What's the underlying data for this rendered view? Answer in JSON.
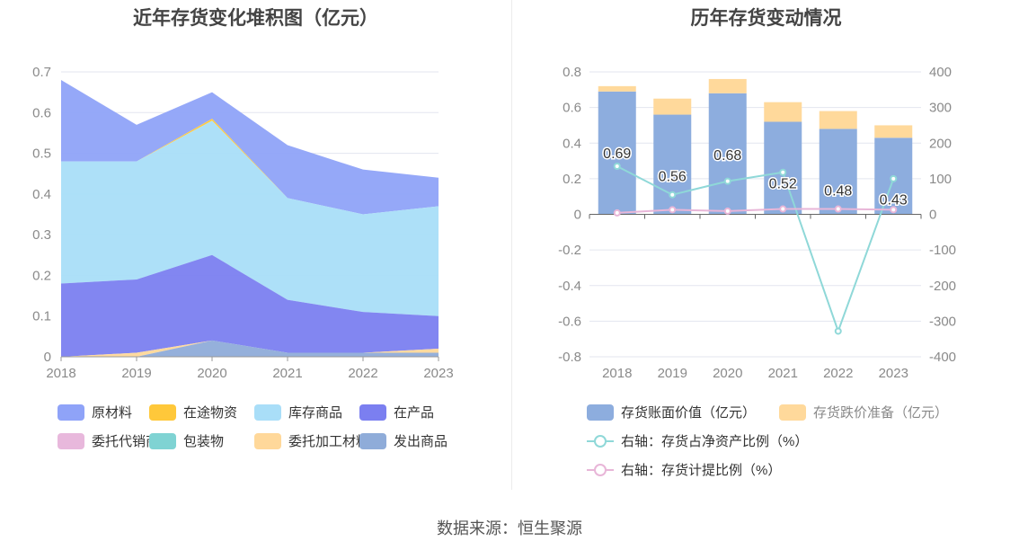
{
  "chart_data": [
    {
      "type": "area",
      "stacked": true,
      "title": "近年存货变化堆积图（亿元）",
      "categories": [
        "2018",
        "2019",
        "2020",
        "2021",
        "2022",
        "2023"
      ],
      "ylim": [
        0,
        0.7
      ],
      "yticks": [
        "0",
        "0.1",
        "0.2",
        "0.3",
        "0.4",
        "0.5",
        "0.6",
        "0.7"
      ],
      "series": [
        {
          "name": "发出商品",
          "color": "#8facd9",
          "values": [
            0,
            0,
            0.04,
            0.01,
            0.01,
            0.01
          ]
        },
        {
          "name": "委托加工材料",
          "color": "#ffd89a",
          "values": [
            0,
            0.01,
            0,
            0,
            0,
            0.01
          ]
        },
        {
          "name": "包装物",
          "color": "#7fd3d3",
          "values": [
            0,
            0,
            0,
            0,
            0,
            0
          ]
        },
        {
          "name": "委托代销商品",
          "color": "#e8b8dc",
          "values": [
            0,
            0,
            0,
            0,
            0,
            0
          ]
        },
        {
          "name": "在产品",
          "color": "#7b7ff0",
          "values": [
            0.18,
            0.18,
            0.21,
            0.13,
            0.1,
            0.08
          ]
        },
        {
          "name": "库存商品",
          "color": "#a9def8",
          "values": [
            0.3,
            0.29,
            0.33,
            0.25,
            0.24,
            0.27
          ]
        },
        {
          "name": "在途物资",
          "color": "#ffc83a",
          "values": [
            0,
            0,
            0.005,
            0,
            0,
            0
          ]
        },
        {
          "name": "原材料",
          "color": "#8fa3f8",
          "values": [
            0.2,
            0.09,
            0.065,
            0.13,
            0.11,
            0.07
          ]
        }
      ],
      "legend_order": [
        "原材料",
        "在途物资",
        "库存商品",
        "在产品",
        "委托代销商品",
        "包装物",
        "委托加工材料",
        "发出商品"
      ]
    },
    {
      "type": "bar",
      "title": "历年存货变动情况",
      "categories": [
        "2018",
        "2019",
        "2020",
        "2021",
        "2022",
        "2023"
      ],
      "ylim": [
        -0.8,
        0.8
      ],
      "yticks": [
        "-0.8",
        "-0.6",
        "-0.4",
        "-0.2",
        "0",
        "0.2",
        "0.4",
        "0.6",
        "0.8"
      ],
      "y2lim": [
        -400,
        400
      ],
      "y2ticks": [
        "-400",
        "-300",
        "-200",
        "-100",
        "0",
        "100",
        "200",
        "300",
        "400"
      ],
      "series": [
        {
          "name": "存货账面价值（亿元）",
          "color": "#8dadde",
          "values": [
            0.69,
            0.56,
            0.68,
            0.52,
            0.48,
            0.43
          ],
          "labels": [
            "0.69",
            "0.56",
            "0.68",
            "0.52",
            "0.48",
            "0.43"
          ]
        },
        {
          "name": "存货跌价准备（亿元）",
          "color": "#ffd99b",
          "values": [
            0.03,
            0.09,
            0.08,
            0.11,
            0.1,
            0.07
          ]
        },
        {
          "name": "右轴：存货占净资产比例（%）",
          "color": "#8fd8d8",
          "axis": "right",
          "values": [
            135,
            55,
            93,
            118,
            -328,
            100
          ]
        },
        {
          "name": "右轴：存货计提比例（%）",
          "color": "#e8b6d8",
          "axis": "right",
          "values": [
            4,
            13,
            9,
            15,
            15,
            13
          ]
        }
      ]
    }
  ],
  "footer": "数据来源：恒生聚源"
}
